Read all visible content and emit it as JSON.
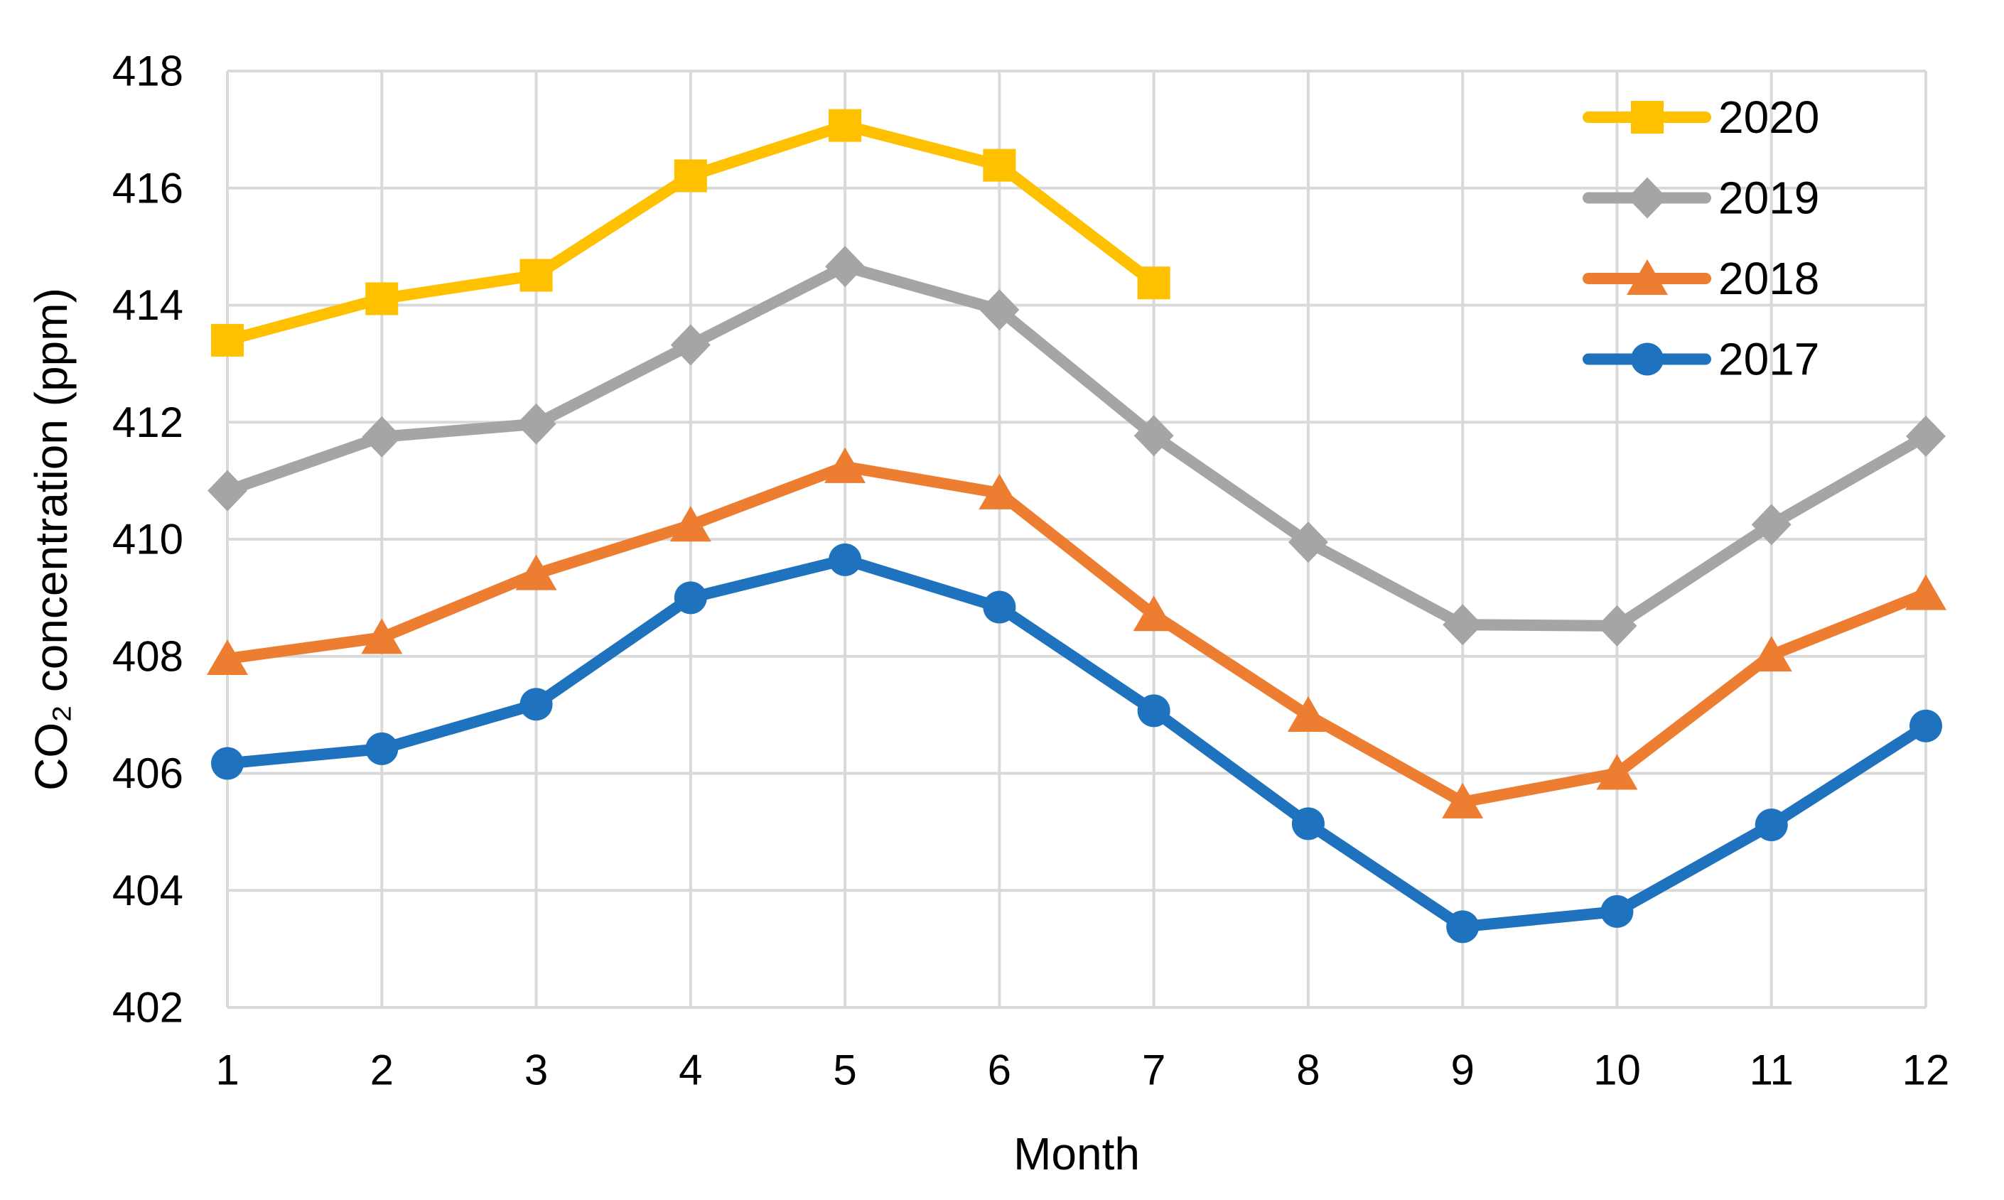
{
  "chart_data": {
    "type": "line",
    "title": "",
    "xlabel": "Month",
    "ylabel": "CO₂ concentration (ppm)",
    "x": [
      1,
      2,
      3,
      4,
      5,
      6,
      7,
      8,
      9,
      10,
      11,
      12
    ],
    "xlim": [
      1,
      12
    ],
    "ylim": [
      402,
      418
    ],
    "yticks": [
      402,
      404,
      406,
      408,
      410,
      412,
      414,
      416,
      418
    ],
    "grid": true,
    "legend_position": "top-right-inside",
    "colors": {
      "grid": "#D9D9D9",
      "text": "#000000",
      "background": "#FFFFFF"
    },
    "series": [
      {
        "name": "2020",
        "color": "#FFC000",
        "marker": "square",
        "values": [
          413.4,
          414.11,
          414.51,
          416.21,
          417.07,
          416.39,
          414.38
        ]
      },
      {
        "name": "2019",
        "color": "#A5A5A5",
        "marker": "diamond",
        "values": [
          410.83,
          411.75,
          411.97,
          413.32,
          414.66,
          413.92,
          411.77,
          409.95,
          408.54,
          408.52,
          410.25,
          411.76
        ]
      },
      {
        "name": "2018",
        "color": "#ED7D31",
        "marker": "triangle",
        "values": [
          407.96,
          408.32,
          409.41,
          410.24,
          411.24,
          410.79,
          408.71,
          406.99,
          405.51,
          406.0,
          408.02,
          409.07
        ]
      },
      {
        "name": "2017",
        "color": "#1F72BD",
        "marker": "circle",
        "values": [
          406.17,
          406.42,
          407.18,
          409.0,
          409.65,
          408.84,
          407.07,
          405.14,
          403.38,
          403.64,
          405.12,
          406.81
        ]
      }
    ]
  }
}
